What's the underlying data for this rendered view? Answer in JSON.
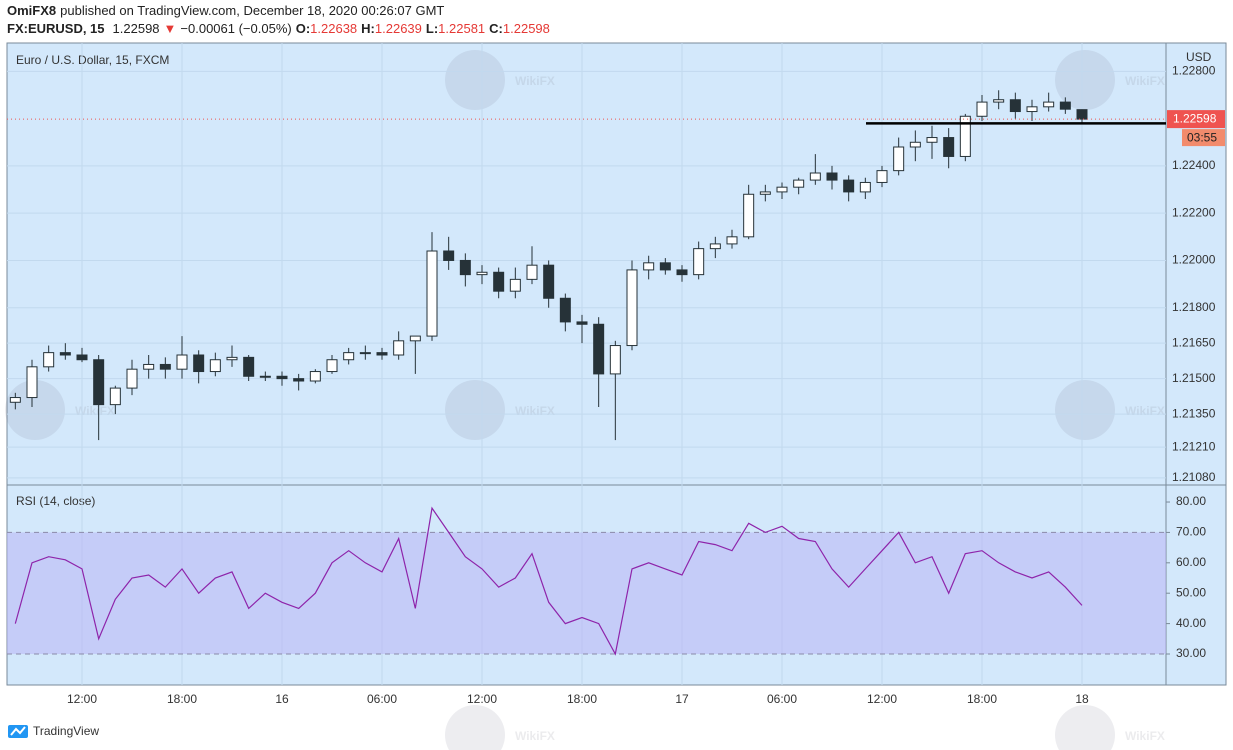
{
  "header": {
    "author": "OmiFX8",
    "published": "published on TradingView.com, December 18, 2020 00:26:07 GMT",
    "symbol": "FX:EURUSD, 15",
    "price": "1.22598",
    "arrow": "▼",
    "change": "−0.00061 (−0.05%)",
    "open_label": "O:",
    "open": "1.22638",
    "high_label": "H:",
    "high": "1.22639",
    "low_label": "L:",
    "low": "1.22581",
    "close_label": "C:",
    "close": "1.22598"
  },
  "footer": {
    "brand": "TradingView"
  },
  "watermark": "WikiFX",
  "chart_data": [
    {
      "type": "candlestick",
      "title": "Euro / U.S. Dollar, 15, FXCM",
      "y_axis_label": "USD",
      "countdown": "03:55",
      "categories": [
        null,
        null,
        null,
        null,
        "12:00",
        null,
        null,
        null,
        null,
        null,
        "18:00",
        null,
        null,
        null,
        null,
        null,
        "16",
        null,
        null,
        null,
        null,
        null,
        "06:00",
        null,
        null,
        null,
        null,
        null,
        "12:00",
        null,
        null,
        null,
        null,
        null,
        "18:00",
        null,
        null,
        null,
        null,
        null,
        "17",
        null,
        null,
        null,
        null,
        null,
        "06:00",
        null,
        null,
        null,
        null,
        null,
        "12:00",
        null,
        null,
        null,
        null,
        null,
        "18:00",
        null,
        null,
        null,
        null,
        null,
        "18"
      ],
      "open": [
        1.214,
        1.2142,
        1.2155,
        1.2161,
        1.216,
        1.2158,
        1.2139,
        1.2146,
        1.2154,
        1.2156,
        1.2154,
        1.216,
        1.2153,
        1.2158,
        1.2159,
        1.2151,
        1.2151,
        1.215,
        1.2149,
        1.2153,
        1.2158,
        1.2161,
        1.2161,
        1.216,
        1.2166,
        1.2168,
        1.2204,
        1.22,
        1.2194,
        1.2195,
        1.2187,
        1.2192,
        1.2198,
        1.2184,
        1.2174,
        1.2173,
        1.2152,
        1.2164,
        1.2196,
        1.2199,
        1.2196,
        1.2194,
        1.2205,
        1.2207,
        1.221,
        1.2228,
        1.2229,
        1.2231,
        1.2234,
        1.2237,
        1.2234,
        1.2229,
        1.2233,
        1.2238,
        1.2248,
        1.225,
        1.2252,
        1.2244,
        1.2261,
        1.2267,
        1.2268,
        1.2263,
        1.2265,
        1.2267,
        1.22638
      ],
      "high": [
        1.2144,
        1.2158,
        1.2164,
        1.2165,
        1.2163,
        1.216,
        1.2147,
        1.2158,
        1.216,
        1.2159,
        1.2168,
        1.2162,
        1.2161,
        1.2164,
        1.216,
        1.2153,
        1.2153,
        1.2152,
        1.2154,
        1.216,
        1.2163,
        1.2164,
        1.2163,
        1.217,
        1.2168,
        1.2212,
        1.221,
        1.2203,
        1.2198,
        1.2197,
        1.2197,
        1.2206,
        1.22,
        1.2186,
        1.2177,
        1.2176,
        1.2166,
        1.22,
        1.2202,
        1.2201,
        1.2198,
        1.2208,
        1.221,
        1.2213,
        1.2232,
        1.2232,
        1.2233,
        1.2235,
        1.2245,
        1.224,
        1.2236,
        1.2235,
        1.224,
        1.2252,
        1.2255,
        1.2257,
        1.2256,
        1.2262,
        1.227,
        1.2272,
        1.2271,
        1.2268,
        1.2271,
        1.2269,
        1.22639
      ],
      "low": [
        1.2137,
        1.2138,
        1.2153,
        1.2158,
        1.2157,
        1.2124,
        1.2135,
        1.2143,
        1.215,
        1.215,
        1.215,
        1.2148,
        1.2151,
        1.2155,
        1.2149,
        1.2149,
        1.2147,
        1.2145,
        1.2148,
        1.2152,
        1.2156,
        1.2158,
        1.2158,
        1.2158,
        1.2152,
        1.2166,
        1.2196,
        1.2189,
        1.219,
        1.2184,
        1.2184,
        1.219,
        1.218,
        1.217,
        1.2165,
        1.2138,
        1.2124,
        1.2162,
        1.2192,
        1.2194,
        1.2191,
        1.2192,
        1.2201,
        1.2205,
        1.2209,
        1.2225,
        1.2226,
        1.2228,
        1.2232,
        1.223,
        1.2225,
        1.2226,
        1.2231,
        1.2236,
        1.2242,
        1.2243,
        1.2239,
        1.2242,
        1.2259,
        1.2264,
        1.226,
        1.2259,
        1.2263,
        1.2262,
        1.22581
      ],
      "close": [
        1.2142,
        1.2155,
        1.2161,
        1.216,
        1.2158,
        1.2139,
        1.2146,
        1.2154,
        1.2156,
        1.2154,
        1.216,
        1.2153,
        1.2158,
        1.2159,
        1.2151,
        1.2151,
        1.215,
        1.2149,
        1.2153,
        1.2158,
        1.2161,
        1.2161,
        1.216,
        1.2166,
        1.2168,
        1.2204,
        1.22,
        1.2194,
        1.2195,
        1.2187,
        1.2192,
        1.2198,
        1.2184,
        1.2174,
        1.2173,
        1.2152,
        1.2164,
        1.2196,
        1.2199,
        1.2196,
        1.2194,
        1.2205,
        1.2207,
        1.221,
        1.2228,
        1.2229,
        1.2231,
        1.2234,
        1.2237,
        1.2234,
        1.2229,
        1.2233,
        1.2238,
        1.2248,
        1.225,
        1.2252,
        1.2244,
        1.2261,
        1.2267,
        1.2268,
        1.2263,
        1.2265,
        1.2267,
        1.2264,
        1.22598
      ],
      "up_color": "#ffffff",
      "down_color": "#263238",
      "wick_color": "#263238",
      "price_line_color": "#ef5350",
      "horizontal_line": 1.2258,
      "ylim": [
        1.2105,
        1.2292
      ],
      "yticks": [
        {
          "value": 1.228,
          "label": "1.22800"
        },
        {
          "value": 1.224,
          "label": "1.22400"
        },
        {
          "value": 1.222,
          "label": "1.22200"
        },
        {
          "value": 1.22,
          "label": "1.22000"
        },
        {
          "value": 1.218,
          "label": "1.21800"
        },
        {
          "value": 1.2165,
          "label": "1.21650"
        },
        {
          "value": 1.215,
          "label": "1.21500"
        },
        {
          "value": 1.2135,
          "label": "1.21350"
        },
        {
          "value": 1.2121,
          "label": "1.21210"
        },
        {
          "value": 1.2108,
          "label": "1.21080"
        }
      ],
      "grid": true
    },
    {
      "type": "line",
      "title": "RSI (14, close)",
      "color": "#8e24aa",
      "values": [
        40,
        60,
        62,
        61,
        58,
        35,
        48,
        55,
        56,
        52,
        58,
        50,
        55,
        57,
        45,
        50,
        47,
        45,
        50,
        60,
        64,
        60,
        57,
        68,
        45,
        78,
        70,
        62,
        58,
        52,
        55,
        63,
        47,
        40,
        42,
        40,
        30,
        58,
        60,
        58,
        56,
        67,
        66,
        64,
        73,
        70,
        72,
        68,
        67,
        58,
        52,
        58,
        64,
        70,
        60,
        62,
        50,
        63,
        64,
        60,
        57,
        55,
        57,
        52,
        46
      ],
      "band": [
        30,
        70
      ],
      "band_color": "#b9b4f5",
      "ylim": [
        19.8,
        85.6
      ],
      "yticks": [
        {
          "value": 80,
          "label": "80.00"
        },
        {
          "value": 70,
          "label": "70.00"
        },
        {
          "value": 60,
          "label": "60.00"
        },
        {
          "value": 50,
          "label": "50.00"
        },
        {
          "value": 40,
          "label": "40.00"
        },
        {
          "value": 30,
          "label": "30.00"
        }
      ],
      "grid": true
    }
  ]
}
